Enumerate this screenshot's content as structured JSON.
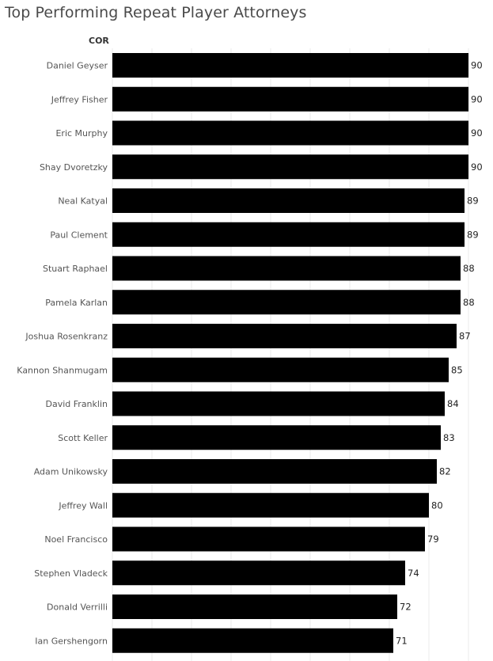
{
  "title": "Top Performing Repeat Player Attorneys",
  "chart_data": {
    "type": "bar",
    "orientation": "horizontal",
    "row_header": "COR",
    "categories": [
      "Daniel Geyser",
      "Jeffrey Fisher",
      "Eric Murphy",
      "Shay Dvoretzky",
      "Neal Katyal",
      "Paul Clement",
      "Stuart Raphael",
      "Pamela Karlan",
      "Joshua Rosenkranz",
      "Kannon Shanmugam",
      "David Franklin",
      "Scott Keller",
      "Adam Unikowsky",
      "Jeffrey Wall",
      "Noel Francisco",
      "Stephen Vladeck",
      "Donald Verrilli",
      "Ian Gershengorn"
    ],
    "values": [
      90,
      90,
      90,
      90,
      89,
      89,
      88,
      88,
      87,
      85,
      84,
      83,
      82,
      80,
      79,
      74,
      72,
      71
    ],
    "xlim": [
      0,
      95
    ],
    "grid": true,
    "bar_color": "#000000"
  }
}
